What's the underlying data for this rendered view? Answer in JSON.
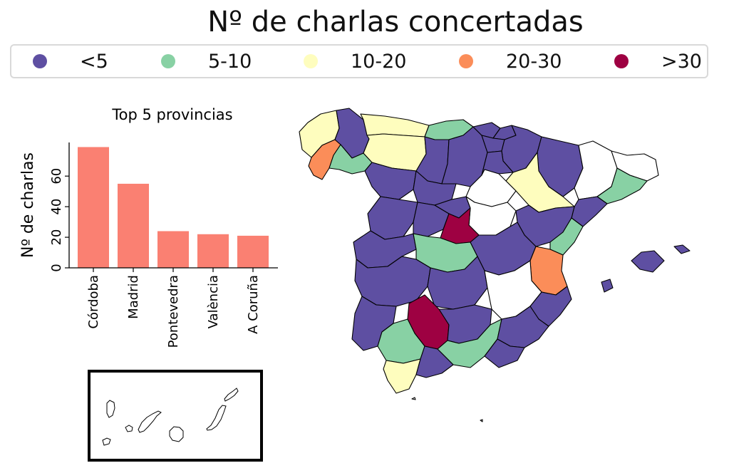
{
  "title": "Nº de charlas concertadas",
  "legend": [
    {
      "label": "<5",
      "color": "#5e4fa2"
    },
    {
      "label": "5-10",
      "color": "#88d1a4"
    },
    {
      "label": "10-20",
      "color": "#fefdbe"
    },
    {
      "label": "20-30",
      "color": "#fb8d59"
    },
    {
      "label": ">30",
      "color": "#9e0142"
    }
  ],
  "chart_data": {
    "type": "bar",
    "title": "Top 5 provincias",
    "ylabel": "Nº de charlas",
    "categories": [
      "Córdoba",
      "Madrid",
      "Pontevedra",
      "València",
      "A Coruña"
    ],
    "values": [
      79,
      55,
      24,
      22,
      21
    ],
    "ylim": [
      0,
      82
    ],
    "yticks": [
      0,
      20,
      40,
      60
    ],
    "bar_color": "#fa8072"
  },
  "map": {
    "colors": {
      "lt5": "#5e4fa2",
      "c5_10": "#88d1a4",
      "c10_20": "#fefdbe",
      "c20_30": "#fb8d59",
      "gt30": "#9e0142",
      "none": "#ffffff"
    }
  }
}
